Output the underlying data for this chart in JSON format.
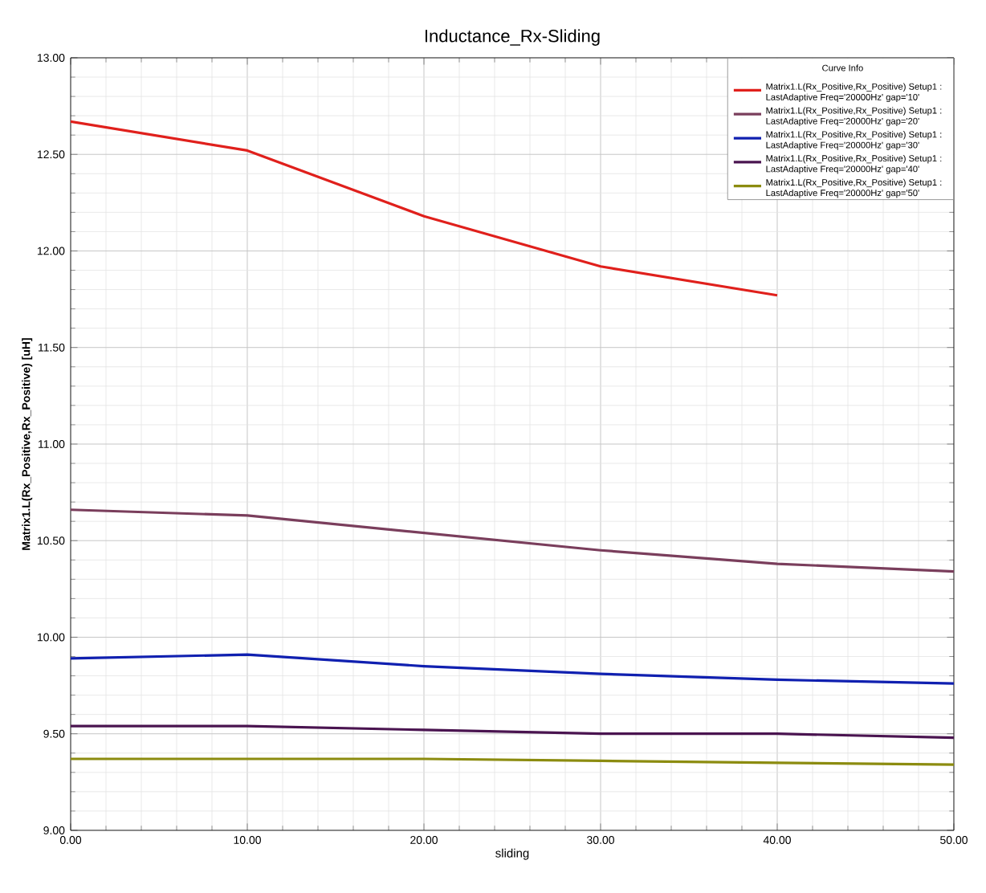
{
  "chart_data": {
    "type": "line",
    "title": "Inductance_Rx-Sliding",
    "xlabel": "sliding",
    "ylabel": "Matrix1.L(Rx_Positive,Rx_Positive) [uH]",
    "legend_title": "Curve Info",
    "x": [
      0,
      10,
      20,
      30,
      40,
      50
    ],
    "series": [
      {
        "name": "Matrix1.L(Rx_Positive,Rx_Positive) Setup1 : LastAdaptive Freq='20000Hz' gap='10'",
        "color": "#e0201c",
        "values": [
          12.67,
          12.52,
          12.18,
          11.92,
          11.77,
          null
        ]
      },
      {
        "name": "Matrix1.L(Rx_Positive,Rx_Positive) Setup1 : LastAdaptive Freq='20000Hz' gap='20'",
        "color": "#7a3e5c",
        "values": [
          10.66,
          10.63,
          10.54,
          10.45,
          10.38,
          10.34
        ]
      },
      {
        "name": "Matrix1.L(Rx_Positive,Rx_Positive) Setup1 : LastAdaptive Freq='20000Hz' gap='30'",
        "color": "#1020b0",
        "values": [
          9.89,
          9.91,
          9.85,
          9.81,
          9.78,
          9.76
        ]
      },
      {
        "name": "Matrix1.L(Rx_Positive,Rx_Positive) Setup1 : LastAdaptive Freq='20000Hz' gap='40'",
        "color": "#4a1450",
        "values": [
          9.54,
          9.54,
          9.52,
          9.5,
          9.5,
          9.48
        ]
      },
      {
        "name": "Matrix1.L(Rx_Positive,Rx_Positive) Setup1 : LastAdaptive Freq='20000Hz' gap='50'",
        "color": "#8c8c10",
        "values": [
          9.37,
          9.37,
          9.37,
          9.36,
          9.35,
          9.34
        ]
      }
    ],
    "xlim": [
      0,
      50
    ],
    "ylim": [
      9,
      13
    ],
    "xticks": [
      {
        "value": 0,
        "label": "0.00"
      },
      {
        "value": 10,
        "label": "10.00"
      },
      {
        "value": 20,
        "label": "20.00"
      },
      {
        "value": 30,
        "label": "30.00"
      },
      {
        "value": 40,
        "label": "40.00"
      },
      {
        "value": 50,
        "label": "50.00"
      }
    ],
    "yticks": [
      {
        "value": 9,
        "label": "9.00"
      },
      {
        "value": 9.5,
        "label": "9.50"
      },
      {
        "value": 10,
        "label": "10.00"
      },
      {
        "value": 10.5,
        "label": "10.50"
      },
      {
        "value": 11,
        "label": "11.00"
      },
      {
        "value": 11.5,
        "label": "11.50"
      },
      {
        "value": 12,
        "label": "12.00"
      },
      {
        "value": 12.5,
        "label": "12.50"
      },
      {
        "value": 13,
        "label": "13.00"
      }
    ],
    "grid": true,
    "legend": "top right"
  }
}
